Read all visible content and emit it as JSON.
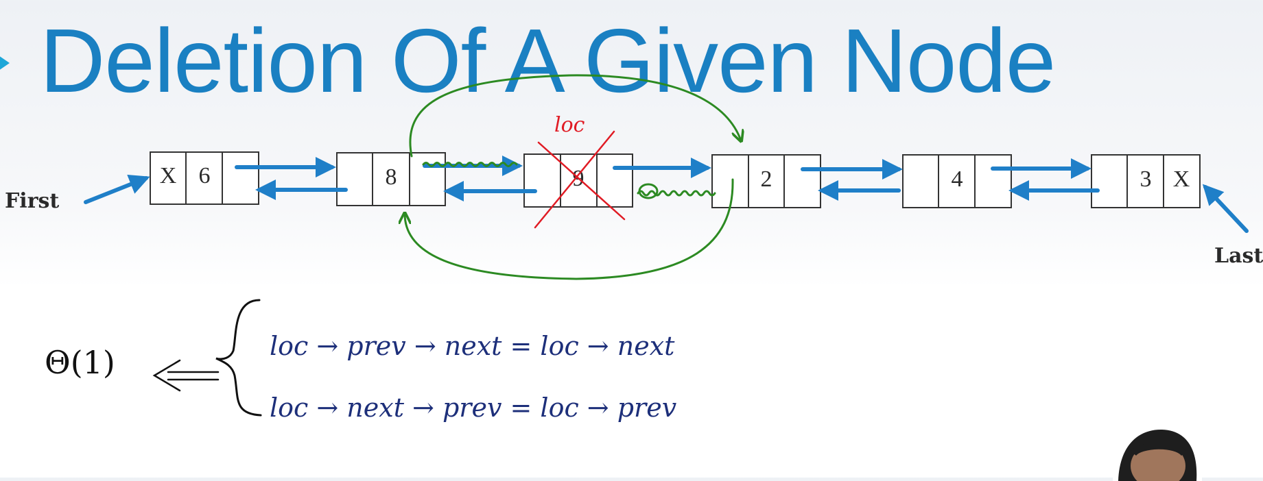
{
  "title": "Deletion Of A Given Node",
  "labels": {
    "first": "First",
    "last": "Last"
  },
  "nodes": [
    {
      "prev": "X",
      "value": "6",
      "next": ""
    },
    {
      "prev": "",
      "value": "8",
      "next": ""
    },
    {
      "prev": "",
      "value": "9",
      "next": ""
    },
    {
      "prev": "",
      "value": "2",
      "next": ""
    },
    {
      "prev": "",
      "value": "4",
      "next": ""
    },
    {
      "prev": "",
      "value": "3",
      "next": "X"
    }
  ],
  "annotations": {
    "loc_label": "loc",
    "complexity": "Θ(1)",
    "line1": "loc → prev → next = loc → next",
    "line2": "loc → next → prev = loc → prev"
  },
  "colors": {
    "title": "#1a80c2",
    "arrow": "#1f7fc8",
    "relink": "#2c8a22",
    "cross": "#e01b24",
    "handwriting": "#1d2f7a"
  }
}
